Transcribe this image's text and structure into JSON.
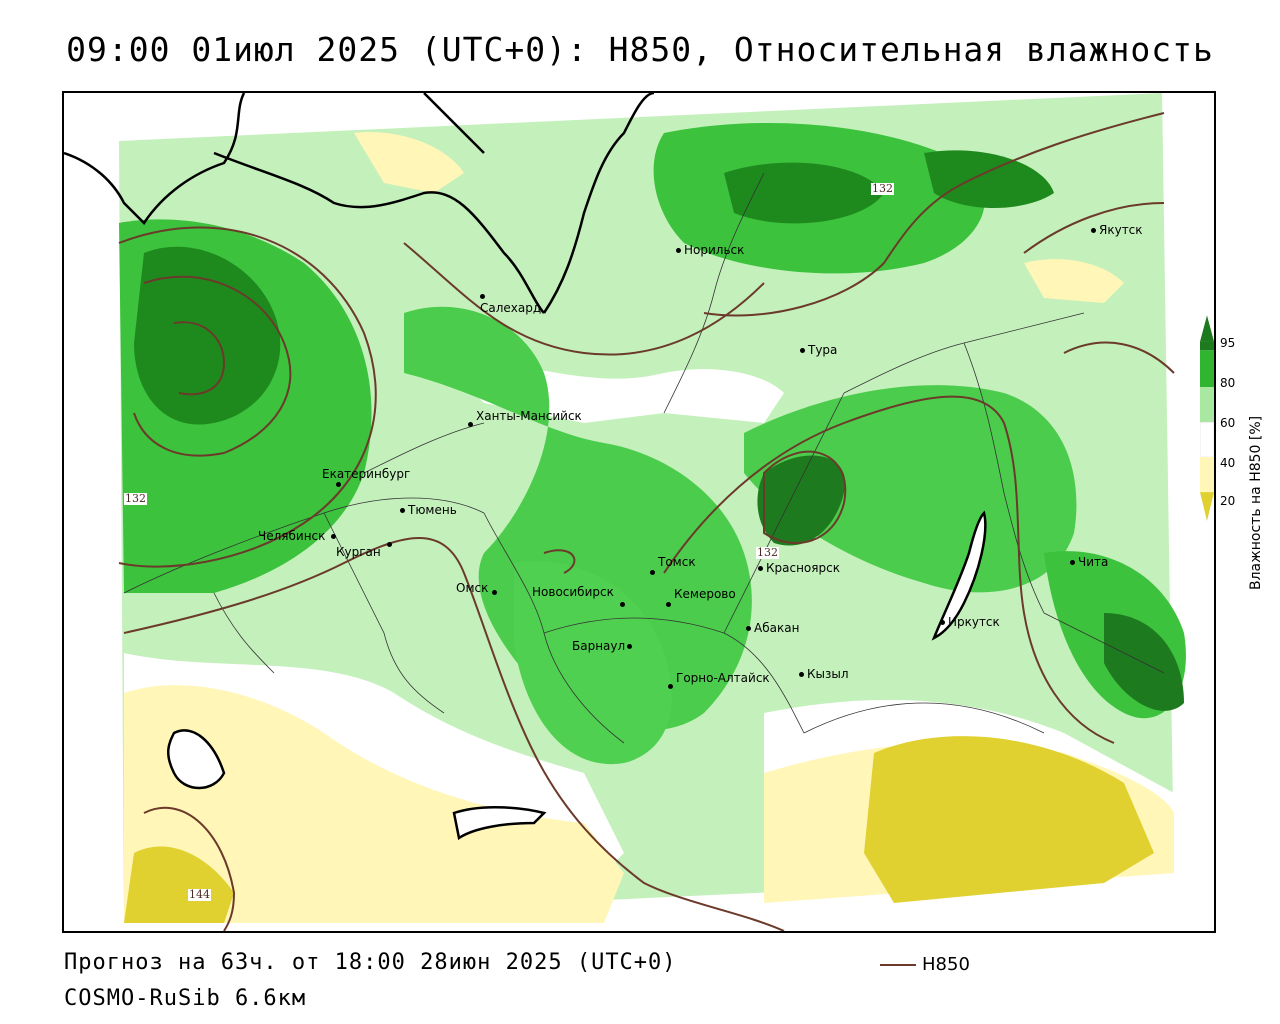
{
  "title": "09:00 01июл 2025 (UTC+0): H850, Относительная влажность",
  "footer": {
    "forecast": "Прогноз на 63ч. от 18:00 28июн 2025 (UTC+0)",
    "model": "COSMO-RuSib 6.6км"
  },
  "legend": {
    "title": "Влажность на H850 [%]",
    "ticks": [
      "95",
      "80",
      "60",
      "40",
      "20"
    ],
    "colors": {
      "c95": "#1e7a1e",
      "c80": "#2fb52f",
      "c60": "#a8e8a0",
      "c40": "#ffffff",
      "c20": "#fff6b8",
      "c0": "#e0d030"
    },
    "series_name": "H850",
    "series_color": "#6b3a2a"
  },
  "isolines": [
    "132",
    "132",
    "132",
    "144"
  ],
  "cities": [
    {
      "name": "Салехард"
    },
    {
      "name": "Норильск"
    },
    {
      "name": "Якутск"
    },
    {
      "name": "Тура"
    },
    {
      "name": "Ханты-Мансийск"
    },
    {
      "name": "Екатеринбург"
    },
    {
      "name": "Тюмень"
    },
    {
      "name": "Челябинск"
    },
    {
      "name": "Курган"
    },
    {
      "name": "Омск"
    },
    {
      "name": "Новосибирск"
    },
    {
      "name": "Томск"
    },
    {
      "name": "Кемерово"
    },
    {
      "name": "Красноярск"
    },
    {
      "name": "Барнаул"
    },
    {
      "name": "Абакан"
    },
    {
      "name": "Горно-Алтайск"
    },
    {
      "name": "Кызыл"
    },
    {
      "name": "Иркутск"
    },
    {
      "name": "Чита"
    }
  ]
}
